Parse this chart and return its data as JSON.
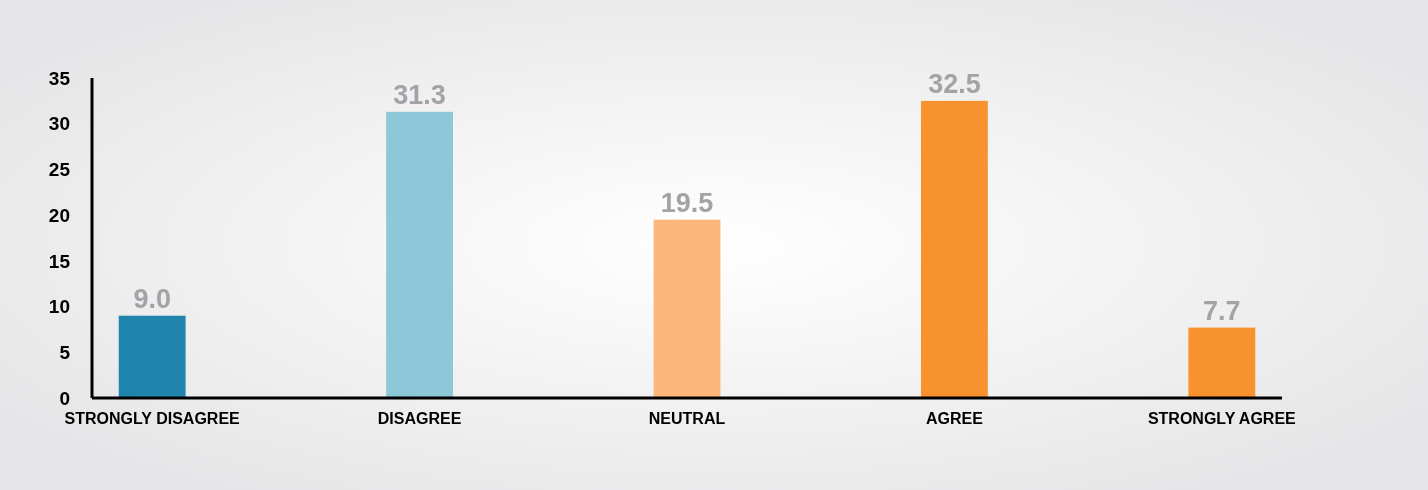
{
  "chart_data": {
    "type": "bar",
    "categories": [
      "STRONGLY DISAGREE",
      "DISAGREE",
      "NEUTRAL",
      "AGREE",
      "STRONGLY AGREE"
    ],
    "values": [
      9.0,
      31.3,
      19.5,
      32.5,
      7.7
    ],
    "colors": [
      "#2085ad",
      "#8ec8d8",
      "#fbb87a",
      "#f7922f",
      "#f7922f"
    ],
    "value_labels": [
      "9.0",
      "31.3",
      "19.5",
      "32.5",
      "7.7"
    ],
    "ylim": [
      0,
      35
    ],
    "yticks": [
      0,
      5,
      10,
      15,
      20,
      25,
      30,
      35
    ]
  }
}
